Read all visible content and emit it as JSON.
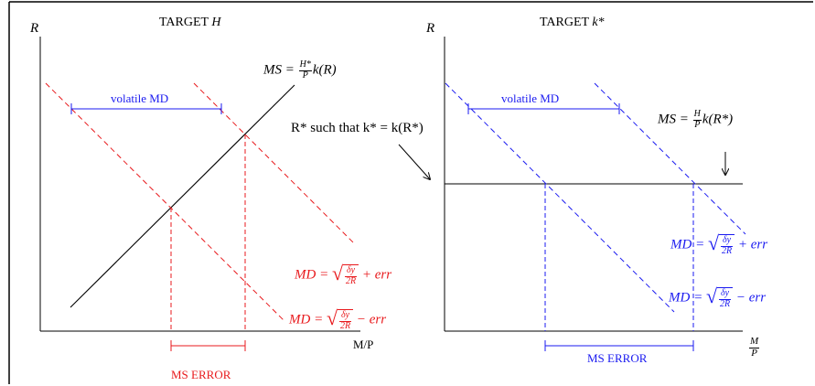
{
  "left_panel": {
    "title_prefix": "TARGET",
    "title_var": "H",
    "y_axis_label": "R",
    "x_axis_label": "M/P",
    "ms_label": "MS =",
    "ms_frac_num": "H*",
    "ms_frac_den": "P",
    "ms_tail": "k(R)",
    "volatile_label": "volatile MD",
    "md_high_prefix": "MD =",
    "md_high_frac_num": "δy",
    "md_high_frac_den": "2R",
    "md_high_tail": "+ err",
    "md_low_prefix": "MD =",
    "md_low_frac_num": "δy",
    "md_low_frac_den": "2R",
    "md_low_tail": "− err",
    "ms_error_label": "MS ERROR"
  },
  "right_panel": {
    "title_prefix": "TARGET",
    "title_var": "k*",
    "y_axis_label": "R",
    "x_frac_num": "M",
    "x_frac_den": "P",
    "annotation": "R* such that k* = k(R*)",
    "ms_label": "MS =",
    "ms_frac_num": "H",
    "ms_frac_den": "P",
    "ms_tail": "k(R*)",
    "volatile_label": "volatile MD",
    "md_high_prefix": "MD =",
    "md_high_frac_num": "δy",
    "md_high_frac_den": "2R",
    "md_high_tail": "+ err",
    "md_low_prefix": "MD =",
    "md_low_frac_num": "δy",
    "md_low_frac_den": "2R",
    "md_low_tail": "− err",
    "ms_error_label": "MS ERROR"
  },
  "colors": {
    "left_accent": "#e8191c",
    "right_accent": "#1a1af0",
    "axis": "#000000"
  }
}
